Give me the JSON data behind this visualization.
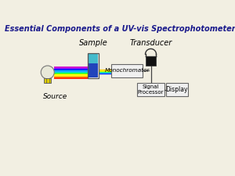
{
  "title": "Essential Components of a UV-vis Spectrophotometer",
  "title_color": "#1a1a8c",
  "title_fontsize": 7.0,
  "bg_color": "#f2efe2",
  "labels": {
    "source": "Source",
    "sample": "Sample",
    "transducer": "Transducer",
    "monochromator": "Monochromator",
    "signal_processor": "Signal\nProcessor",
    "display": "Display"
  },
  "rainbow_colors": [
    "#cc00cc",
    "#8800ff",
    "#0000ff",
    "#0066ff",
    "#00aaff",
    "#00ddcc",
    "#00ff44",
    "#aaff00",
    "#ffff00",
    "#ffcc00",
    "#ff8800",
    "#ff2200"
  ],
  "box_edge_color": "#666666",
  "box_face_color": "#f0f0f0",
  "line_color": "#444444"
}
